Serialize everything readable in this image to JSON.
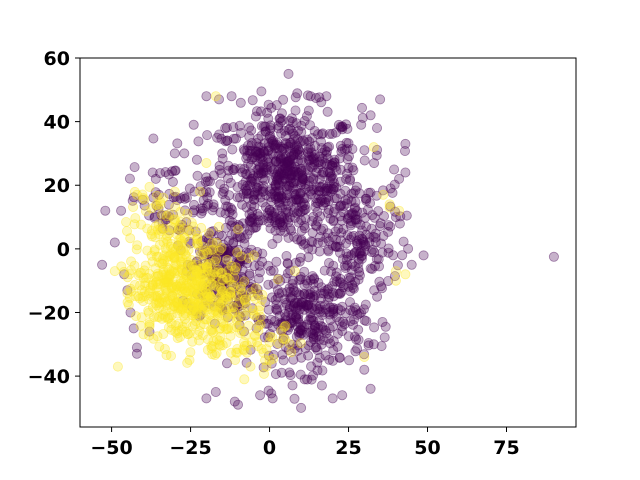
{
  "chart_data": {
    "type": "scatter",
    "title": "",
    "xlabel": "",
    "ylabel": "",
    "xlim": [
      -60,
      97
    ],
    "ylim": [
      -56,
      60
    ],
    "x_ticks": [
      -50,
      -25,
      0,
      25,
      50,
      75
    ],
    "y_ticks": [
      -40,
      -20,
      0,
      20,
      40,
      60
    ],
    "x_tick_labels": [
      "−50",
      "−25",
      "0",
      "25",
      "50",
      "75"
    ],
    "y_tick_labels": [
      "−40",
      "−20",
      "0",
      "20",
      "40",
      "60"
    ],
    "grid": false,
    "legend": "none",
    "marker_opacity": 0.3,
    "series": [
      {
        "color": "#440154",
        "clusters": [
          {
            "center": [
              5,
              22
            ],
            "spread": [
              12,
              11
            ],
            "count": 700
          },
          {
            "center": [
              -15,
              -8
            ],
            "spread": [
              5,
              7
            ],
            "count": 220
          },
          {
            "center": [
              12,
              -22
            ],
            "spread": [
              9,
              8
            ],
            "count": 320
          },
          {
            "center": [
              28,
              2
            ],
            "spread": [
              7,
              10
            ],
            "count": 180
          },
          {
            "center": [
              -30,
              15
            ],
            "spread": [
              8,
              6
            ],
            "count": 60
          }
        ],
        "points": [
          [
            90,
            -2.5
          ],
          [
            6,
            55
          ],
          [
            -53,
            -5
          ],
          [
            -52,
            12
          ],
          [
            -47,
            12
          ],
          [
            -45,
            -13
          ],
          [
            -44,
            -20
          ],
          [
            -43,
            -25
          ],
          [
            -42,
            -31
          ],
          [
            -37,
            24
          ],
          [
            -36,
            22
          ],
          [
            -30,
            30
          ],
          [
            -27,
            30
          ],
          [
            -24,
            39
          ],
          [
            -20,
            48
          ],
          [
            -16,
            47
          ],
          [
            -12,
            48
          ],
          [
            -20,
            -47
          ],
          [
            -17,
            -45
          ],
          [
            -11,
            -48
          ],
          [
            -10,
            -49
          ],
          [
            -3,
            -46
          ],
          [
            1,
            -47
          ],
          [
            10,
            -50
          ],
          [
            20,
            -47
          ],
          [
            23,
            -46
          ],
          [
            32,
            -44
          ],
          [
            45,
            -5
          ],
          [
            43,
            24
          ],
          [
            43,
            33
          ],
          [
            41,
            22
          ],
          [
            34,
            38
          ],
          [
            35,
            47
          ],
          [
            32,
            42
          ],
          [
            29,
            39
          ],
          [
            -35,
            17
          ],
          [
            -49,
            2
          ],
          [
            -46,
            -8
          ],
          [
            40,
            10
          ],
          [
            42,
            -2
          ],
          [
            33,
            -30
          ],
          [
            30,
            -38
          ],
          [
            -42,
            -33
          ],
          [
            -38,
            -26
          ],
          [
            -15,
            30
          ],
          [
            -23,
            28
          ],
          [
            18,
            48
          ],
          [
            13,
            48
          ]
        ]
      },
      {
        "color": "#fde725",
        "clusters": [
          {
            "center": [
              -28,
              -12
            ],
            "spread": [
              9,
              9
            ],
            "count": 480
          },
          {
            "center": [
              -10,
              -26
            ],
            "spread": [
              8,
              6
            ],
            "count": 110
          },
          {
            "center": [
              -35,
              8
            ],
            "spread": [
              5,
              5
            ],
            "count": 50
          }
        ],
        "points": [
          [
            -48,
            -37
          ],
          [
            -42,
            17
          ],
          [
            -40,
            16
          ],
          [
            -30,
            18
          ],
          [
            -20,
            27
          ],
          [
            -17,
            48
          ],
          [
            -8,
            -41
          ],
          [
            -1,
            -37
          ],
          [
            8,
            -7
          ],
          [
            30,
            -34
          ],
          [
            33,
            32
          ],
          [
            40,
            -10
          ],
          [
            43,
            -8
          ],
          [
            40,
            -7
          ],
          [
            38,
            14
          ],
          [
            41,
            12
          ],
          [
            36,
            17
          ],
          [
            38,
            13
          ],
          [
            -49,
            -7
          ],
          [
            -45,
            -14
          ],
          [
            -22,
            18
          ],
          [
            -26,
            11
          ],
          [
            -5,
            -2
          ]
        ]
      }
    ]
  }
}
